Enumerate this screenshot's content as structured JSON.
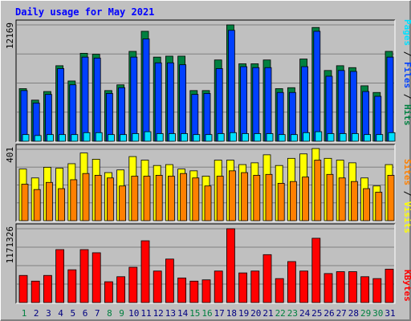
{
  "title": "Daily usage for May 2021",
  "colors": {
    "background": "#c0c0c0",
    "title": "#0000ff",
    "hits": "#008040",
    "files": "#0040ff",
    "pages": "#00e0ff",
    "visits": "#ffff00",
    "sites": "#ff8000",
    "kbytes": "#ff0000",
    "weekend_label": "#008040",
    "weekday_label": "#000080"
  },
  "legend": {
    "top": {
      "pages": "Pages",
      "sep1": " / ",
      "files": "Files",
      "sep2": " / ",
      "hits": "Hits"
    },
    "middle": {
      "sites": "Sites",
      "sep": " / ",
      "visits": "Visits"
    },
    "bottom": {
      "kbytes": "KBytes"
    }
  },
  "chart_data": [
    {
      "type": "bar",
      "panel": "hits-files-pages",
      "ymax_label": "12169",
      "ylim": [
        0,
        12169
      ],
      "grid": true,
      "categories": [
        "1",
        "2",
        "3",
        "4",
        "5",
        "6",
        "7",
        "8",
        "9",
        "10",
        "11",
        "12",
        "13",
        "14",
        "15",
        "16",
        "17",
        "18",
        "19",
        "20",
        "21",
        "22",
        "23",
        "24",
        "25",
        "26",
        "27",
        "28",
        "29",
        "30",
        "31"
      ],
      "weekend": [
        true,
        false,
        false,
        false,
        false,
        false,
        false,
        true,
        true,
        false,
        false,
        false,
        false,
        false,
        true,
        true,
        false,
        false,
        false,
        false,
        false,
        true,
        true,
        false,
        false,
        false,
        false,
        false,
        true,
        true,
        false
      ],
      "series": [
        {
          "name": "Hits",
          "values": [
            5500,
            4300,
            5200,
            7900,
            6300,
            9200,
            9100,
            5300,
            5900,
            9400,
            11500,
            8800,
            8900,
            8900,
            5300,
            5300,
            8500,
            12169,
            8100,
            8100,
            8500,
            5500,
            5600,
            8600,
            11900,
            7400,
            7900,
            7700,
            5800,
            5100,
            9400
          ]
        },
        {
          "name": "Files",
          "values": [
            5300,
            4000,
            4900,
            7600,
            5900,
            8800,
            8700,
            5000,
            5600,
            8800,
            10700,
            8200,
            8200,
            8000,
            4900,
            5000,
            7600,
            11600,
            7800,
            7700,
            7700,
            5100,
            5100,
            7800,
            11500,
            6800,
            7400,
            7300,
            5200,
            4700,
            8800
          ]
        },
        {
          "name": "Pages",
          "values": [
            700,
            600,
            700,
            700,
            700,
            900,
            900,
            700,
            700,
            800,
            1000,
            800,
            800,
            800,
            700,
            700,
            800,
            900,
            800,
            800,
            800,
            700,
            700,
            900,
            1000,
            800,
            800,
            800,
            700,
            700,
            900
          ]
        }
      ]
    },
    {
      "type": "bar",
      "panel": "visits-sites",
      "ymax_label": "401",
      "ylim": [
        0,
        401
      ],
      "grid": true,
      "categories": [
        "1",
        "2",
        "3",
        "4",
        "5",
        "6",
        "7",
        "8",
        "9",
        "10",
        "11",
        "12",
        "13",
        "14",
        "15",
        "16",
        "17",
        "18",
        "19",
        "20",
        "21",
        "22",
        "23",
        "24",
        "25",
        "26",
        "27",
        "28",
        "29",
        "30",
        "31"
      ],
      "series": [
        {
          "name": "Visits",
          "values": [
            290,
            240,
            300,
            295,
            320,
            380,
            345,
            270,
            285,
            360,
            340,
            310,
            315,
            290,
            280,
            250,
            340,
            340,
            315,
            325,
            370,
            310,
            350,
            375,
            405,
            350,
            340,
            325,
            240,
            195,
            315
          ]
        },
        {
          "name": "Sites",
          "values": [
            205,
            175,
            215,
            180,
            230,
            265,
            255,
            240,
            195,
            250,
            250,
            255,
            250,
            265,
            240,
            195,
            250,
            280,
            270,
            255,
            260,
            210,
            220,
            245,
            340,
            260,
            240,
            220,
            180,
            160,
            255
          ]
        }
      ]
    },
    {
      "type": "bar",
      "panel": "kbytes",
      "ymax_label": "1171326",
      "ylim": [
        0,
        1171326
      ],
      "grid": true,
      "categories": [
        "1",
        "2",
        "3",
        "4",
        "5",
        "6",
        "7",
        "8",
        "9",
        "10",
        "11",
        "12",
        "13",
        "14",
        "15",
        "16",
        "17",
        "18",
        "19",
        "20",
        "21",
        "22",
        "23",
        "24",
        "25",
        "26",
        "27",
        "28",
        "29",
        "30",
        "31"
      ],
      "series": [
        {
          "name": "KBytes",
          "values": [
            430000,
            340000,
            430000,
            840000,
            520000,
            840000,
            790000,
            330000,
            410000,
            560000,
            980000,
            500000,
            690000,
            390000,
            340000,
            360000,
            500000,
            1171326,
            470000,
            500000,
            760000,
            380000,
            650000,
            500000,
            1020000,
            460000,
            490000,
            490000,
            410000,
            380000,
            530000
          ]
        }
      ]
    }
  ]
}
